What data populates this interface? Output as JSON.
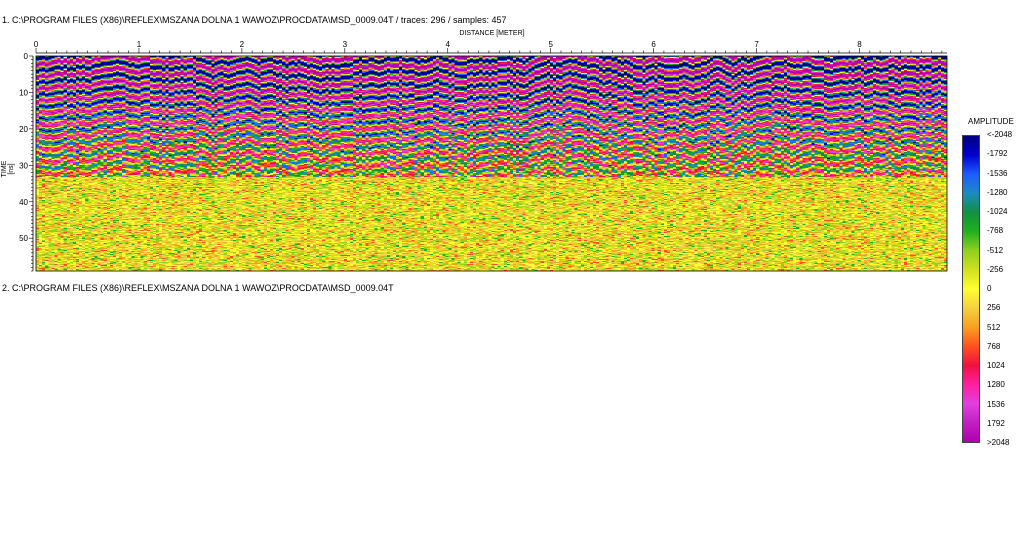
{
  "header": {
    "line1": "1. C:\\PROGRAM FILES (X86)\\REFLEX\\MSZANA DOLNA 1 WAWOZ\\PROCDATA\\MSD_0009.04T / traces: 296 / samples: 457",
    "line2": "2. C:\\PROGRAM FILES (X86)\\REFLEX\\MSZANA DOLNA 1 WAWOZ\\PROCDATA\\MSD_0009.04T"
  },
  "chart_data": {
    "type": "heatmap",
    "xlabel": "DISTANCE [METER]",
    "ylabel": "TIME [ns]",
    "xlim": [
      0,
      8.85
    ],
    "ylim": [
      0,
      59
    ],
    "y_inverted": true,
    "xticks": [
      "0",
      "1",
      "2",
      "3",
      "4",
      "5",
      "6",
      "7",
      "8"
    ],
    "yticks": [
      "0",
      "10",
      "20",
      "30",
      "40",
      "50"
    ],
    "traces": 296,
    "samples": 457,
    "colorbar": {
      "title": "AMPLITUDE",
      "labels": [
        "<-2048",
        "-1792",
        "-1536",
        "-1280",
        "-1024",
        "-768",
        "-512",
        "-256",
        "0",
        "256",
        "512",
        "768",
        "1024",
        "1280",
        "1536",
        "1792",
        ">2048"
      ],
      "colors": [
        "#000080",
        "#0000d0",
        "#1e5cff",
        "#1a8cc0",
        "#109040",
        "#20b020",
        "#90d020",
        "#d0e020",
        "#ffff30",
        "#f4d040",
        "#f8a020",
        "#ff5020",
        "#f01040",
        "#ff20a0",
        "#e040e0",
        "#c020c0",
        "#b000b0"
      ]
    }
  }
}
